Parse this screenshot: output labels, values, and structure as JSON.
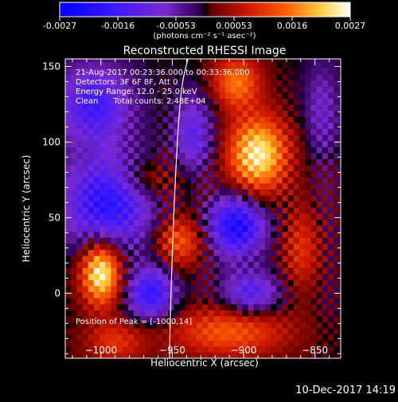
{
  "colorbar": {
    "tick_labels": [
      "-0.0027",
      "-0.0016",
      "-0.00053",
      "0.00053",
      "0.0016",
      "0.0027"
    ],
    "unit_label": "(photons cm⁻² s⁻¹ asec⁻²)"
  },
  "chart_data": {
    "type": "heatmap",
    "title": "Reconstructed RHESSI Image",
    "xlabel": "Heliocentric X (arcsec)",
    "ylabel": "Heliocentric Y (arcsec)",
    "xlim": [
      -1025,
      -832
    ],
    "ylim": [
      -43,
      155
    ],
    "xticks": [
      -1000,
      -950,
      -900,
      -850
    ],
    "yticks": [
      0,
      50,
      100,
      150
    ],
    "xtick_labels": [
      "−1000",
      "−950",
      "−900",
      "−850"
    ],
    "ytick_labels": [
      "0",
      "50",
      "100",
      "150"
    ],
    "color_range": [
      -0.0027,
      0.0027
    ],
    "annotations": [
      "21-Aug-2017 00:23:36.000 to 00:33:36.000",
      "Detectors: 3F 6F 8F, Att 0",
      "Energy Range: 12.0 - 25.0 keV",
      "Clean      Total counts: 2.48E+04"
    ],
    "peak_label": "Position of Peak = [-1000,14]",
    "peak_position": [
      -1000,
      14
    ],
    "sources": [
      {
        "x": -1000,
        "y": 14,
        "sx": 10,
        "sy": 15,
        "amp": 0.0027
      },
      {
        "x": -890,
        "y": 92,
        "sx": 15,
        "sy": 18,
        "amp": 0.0025
      },
      {
        "x": -905,
        "y": 140,
        "sx": 12,
        "sy": 12,
        "amp": 0.0016
      },
      {
        "x": -945,
        "y": 35,
        "sx": 12,
        "sy": 12,
        "amp": 0.0014
      },
      {
        "x": -910,
        "y": -25,
        "sx": 30,
        "sy": 12,
        "amp": 0.0014
      },
      {
        "x": -990,
        "y": -32,
        "sx": 15,
        "sy": 10,
        "amp": 0.001
      },
      {
        "x": -965,
        "y": 75,
        "sx": 18,
        "sy": 10,
        "amp": 0.0008
      },
      {
        "x": -860,
        "y": 30,
        "sx": 10,
        "sy": 20,
        "amp": 0.001
      },
      {
        "x": -905,
        "y": 45,
        "sx": 14,
        "sy": 14,
        "amp": -0.0022
      },
      {
        "x": -995,
        "y": 60,
        "sx": 22,
        "sy": 22,
        "amp": -0.002
      },
      {
        "x": -1005,
        "y": 125,
        "sx": 18,
        "sy": 18,
        "amp": -0.0016
      },
      {
        "x": -965,
        "y": 0,
        "sx": 12,
        "sy": 12,
        "amp": -0.0018
      },
      {
        "x": -895,
        "y": 0,
        "sx": 14,
        "sy": 10,
        "amp": -0.0014
      },
      {
        "x": -935,
        "y": 105,
        "sx": 10,
        "sy": 18,
        "amp": -0.0012
      },
      {
        "x": -845,
        "y": 120,
        "sx": 8,
        "sy": 22,
        "amp": -0.0008
      }
    ]
  },
  "footer": {
    "timestamp": "10-Dec-2017 14:19"
  }
}
